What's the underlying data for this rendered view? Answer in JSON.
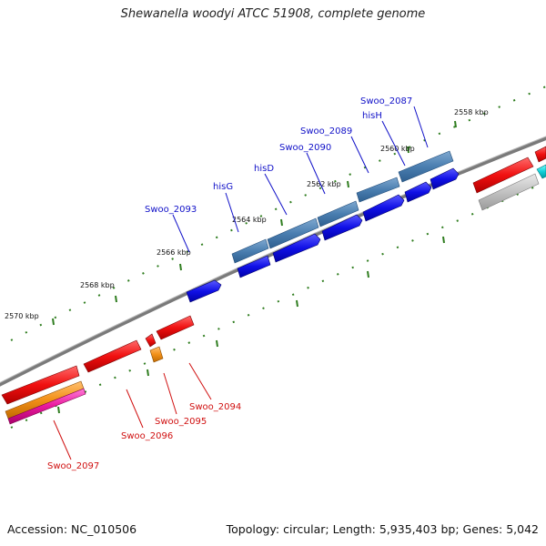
{
  "title": "Shewanella woodyi ATCC 51908, complete genome",
  "footer": {
    "accession": "Accession: NC_010506",
    "summary": "Topology: circular; Length: 5,935,403 bp; Genes: 5,042"
  },
  "colors": {
    "backbone": "#7a7a7a",
    "tick": "#2f7d1f",
    "forward_label": "#1010c8",
    "reverse_label": "#d01010"
  },
  "ticks": [
    "2558 kbp",
    "2560 kbp",
    "2562 kbp",
    "2564 kbp",
    "2566 kbp",
    "2568 kbp",
    "2570 kbp"
  ],
  "gene_labels": {
    "forward": [
      "Swoo_2087",
      "hisH",
      "Swoo_2089",
      "Swoo_2090",
      "hisD",
      "hisG",
      "Swoo_2093"
    ],
    "reverse": [
      "Swoo_2094",
      "Swoo_2095",
      "Swoo_2096",
      "Swoo_2097"
    ]
  }
}
